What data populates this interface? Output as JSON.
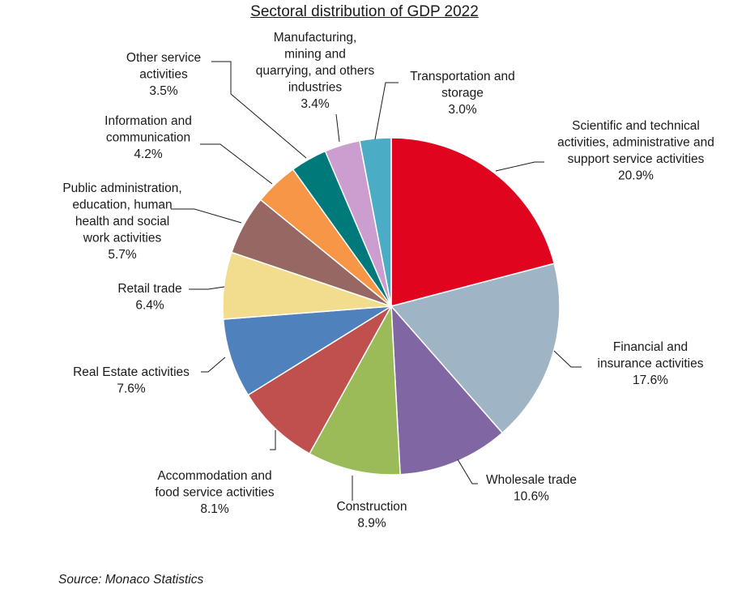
{
  "chart_data": {
    "type": "pie",
    "title": "Sectoral distribution of GDP 2022",
    "source": "Source: Monaco Statistics",
    "unit": "%",
    "slices": [
      {
        "name": [
          "Scientific and technical",
          "activities, administrative and",
          "support service activities"
        ],
        "value": 20.9,
        "label": "20.9%",
        "color": "#e0041f"
      },
      {
        "name": [
          "Financial and",
          "insurance activities"
        ],
        "value": 17.6,
        "label": "17.6%",
        "color": "#9fb4c5"
      },
      {
        "name": [
          "Wholesale trade"
        ],
        "value": 10.6,
        "label": "10.6%",
        "color": "#8166a4"
      },
      {
        "name": [
          "Construction"
        ],
        "value": 8.9,
        "label": "8.9%",
        "color": "#9bbb59"
      },
      {
        "name": [
          "Accommodation and",
          "food service activities"
        ],
        "value": 8.1,
        "label": "8.1%",
        "color": "#c0504d"
      },
      {
        "name": [
          "Real Estate activities"
        ],
        "value": 7.6,
        "label": "7.6%",
        "color": "#4f81bd"
      },
      {
        "name": [
          "Retail trade"
        ],
        "value": 6.4,
        "label": "6.4%",
        "color": "#f2dc8d"
      },
      {
        "name": [
          "Public administration,",
          "education, human",
          "health and social",
          "work activities"
        ],
        "value": 5.7,
        "label": "5.7%",
        "color": "#976863"
      },
      {
        "name": [
          "Information and",
          "communication"
        ],
        "value": 4.2,
        "label": "4.2%",
        "color": "#f79646"
      },
      {
        "name": [
          "Other service",
          "activities"
        ],
        "value": 3.5,
        "label": "3.5%",
        "color": "#00797a"
      },
      {
        "name": [
          "Manufacturing,",
          "mining and",
          "quarrying, and others",
          "industries"
        ],
        "value": 3.4,
        "label": "3.4%",
        "color": "#cc9ecf"
      },
      {
        "name": [
          "Transportation and",
          "storage"
        ],
        "value": 3.0,
        "label": "3.0%",
        "color": "#4bacc6"
      }
    ]
  }
}
